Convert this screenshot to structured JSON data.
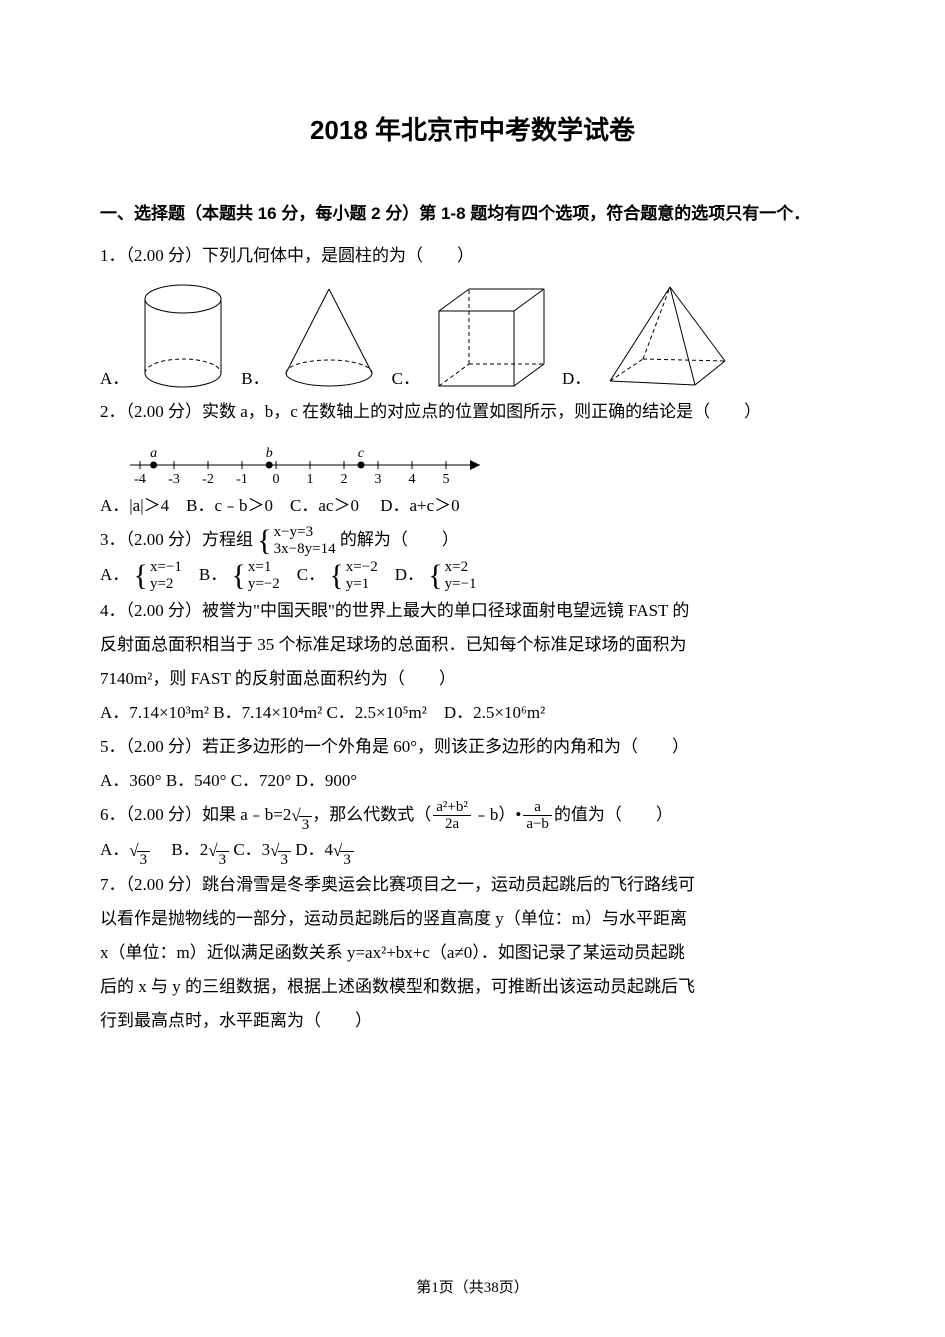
{
  "title": "2018 年北京市中考数学试卷",
  "section_heading": "一、选择题（本题共 16 分，每小题 2 分）第 1-8 题均有四个选项，符合题意的选项只有一个．",
  "q1": {
    "text": "1．（2.00 分）下列几何体中，是圆柱的为（　　）",
    "opts": {
      "A": "A．",
      "B": "B．",
      "C": "C．",
      "D": "D．"
    }
  },
  "q2": {
    "text": "2．（2.00 分）实数 a，b，c 在数轴上的对应点的位置如图所示，则正确的结论是（　　）",
    "numberline": {
      "ticks": [
        -4,
        -3,
        -2,
        -1,
        0,
        1,
        2,
        3,
        4,
        5
      ],
      "points": [
        {
          "label": "a",
          "pos": -3.6
        },
        {
          "label": "b",
          "pos": -0.2
        },
        {
          "label": "c",
          "pos": 2.5
        }
      ]
    },
    "opts": "A．|a|＞4　B．c﹣b＞0　C．ac＞0　 D．a+c＞0"
  },
  "q3": {
    "lead": "3．（2.00 分）方程组",
    "system": {
      "eq1": "x−y=3",
      "eq2": "3x−8y=14"
    },
    "tail": "的解为（　　）",
    "A": {
      "label": "A．",
      "eq1": "x=−1",
      "eq2": "y=2"
    },
    "B": {
      "label": "B．",
      "eq1": "x=1",
      "eq2": "y=−2"
    },
    "C": {
      "label": "C．",
      "eq1": "x=−2",
      "eq2": "y=1"
    },
    "D": {
      "label": "D．",
      "eq1": "x=2",
      "eq2": "y=−1"
    }
  },
  "q4": {
    "line1": "4．（2.00 分）被誉为\"中国天眼\"的世界上最大的单口径球面射电望远镜 FAST 的",
    "line2": "反射面总面积相当于 35 个标准足球场的总面积．已知每个标准足球场的面积为",
    "line3": "7140m²，则 FAST 的反射面总面积约为（　　）",
    "opts": "A．7.14×10³m² B．7.14×10⁴m² C．2.5×10⁵m²　D．2.5×10⁶m²"
  },
  "q5": {
    "text": "5．（2.00 分）若正多边形的一个外角是 60°，则该正多边形的内角和为（　　）",
    "opts": "A．360° B．540° C．720° D．900°"
  },
  "q6": {
    "lead": "6．（2.00 分）如果 a﹣b=2",
    "sqrt_val": "3",
    "mid": "，那么代数式（",
    "frac1_num": "a²+b²",
    "frac1_den": "2a",
    "mid2": "﹣b）•",
    "frac2_num": "a",
    "frac2_den": "a−b",
    "tail": "的值为（　　）",
    "optsA": "A．",
    "optsB": "　B．2",
    "optsC": " C．3",
    "optsD": " D．4"
  },
  "q7": {
    "line1": "7．（2.00 分）跳台滑雪是冬季奥运会比赛项目之一，运动员起跳后的飞行路线可",
    "line2": "以看作是抛物线的一部分，运动员起跳后的竖直高度 y（单位：m）与水平距离",
    "line3": "x（单位：m）近似满足函数关系 y=ax²+bx+c（a≠0）．如图记录了某运动员起跳",
    "line4": "后的 x 与 y 的三组数据，根据上述函数模型和数据，可推断出该运动员起跳后飞",
    "line5": "行到最高点时，水平距离为（　　）"
  },
  "footer": "第1页（共38页）",
  "colors": {
    "text": "#000000",
    "background": "#ffffff",
    "stroke": "#000000",
    "dash": "4 3"
  },
  "fonts": {
    "title_size": 26,
    "body_size": 17,
    "footer_size": 15,
    "title_family": "Microsoft YaHei",
    "body_family": "SimSun"
  }
}
